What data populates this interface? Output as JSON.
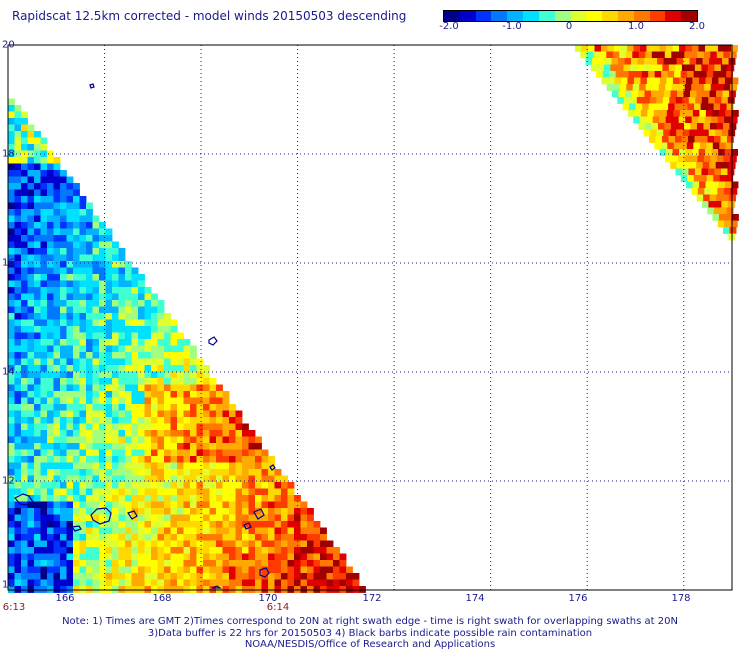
{
  "title": "Rapidscat 12.5km corrected - model winds 20150503 descending",
  "colorbar": {
    "labels": [
      "-2.0",
      "-1.0",
      "0",
      "1.0",
      "2.0"
    ],
    "values": [
      -2.0,
      -1.0,
      0,
      1.0,
      2.0
    ],
    "min": -2.0,
    "max": 2.0,
    "colors": [
      "#00008b",
      "#0000cd",
      "#0032ff",
      "#0078ff",
      "#00b4ff",
      "#00e0ff",
      "#40ffd0",
      "#a0ff80",
      "#e0ff30",
      "#ffff00",
      "#ffd800",
      "#ffaa00",
      "#ff7800",
      "#ff3c00",
      "#e00000",
      "#a00000"
    ]
  },
  "map": {
    "lat_range": [
      10,
      20
    ],
    "lon_range": [
      164,
      179
    ],
    "lat_ticks": [
      "12",
      "14",
      "16",
      "18",
      "20"
    ],
    "lat_tick_values": [
      12,
      14,
      16,
      18,
      20
    ],
    "lon_ticks": [
      "166",
      "168",
      "170",
      "172",
      "174",
      "176",
      "178"
    ],
    "lon_tick_values": [
      166,
      168,
      170,
      172,
      174,
      176,
      178
    ],
    "edge_lat_labels": [
      "10",
      "10"
    ],
    "edge_lon_values": [
      164,
      179
    ],
    "time_labels": [
      {
        "text": "6:13",
        "lon": 164
      },
      {
        "text": "6:14",
        "lon": 170
      }
    ],
    "coastline_color": "#00008b",
    "grid_line_style": "dotted"
  },
  "notes": [
    "Note: 1) Times are GMT 2)Times correspond to 20N at right swath edge - time is right swath for overlapping swaths at 20N",
    "3)Data buffer is 22 hrs for 20150503 4) Black barbs indicate possible rain contamination",
    "NOAA/NESDIS/Office of Research and Applications"
  ]
}
